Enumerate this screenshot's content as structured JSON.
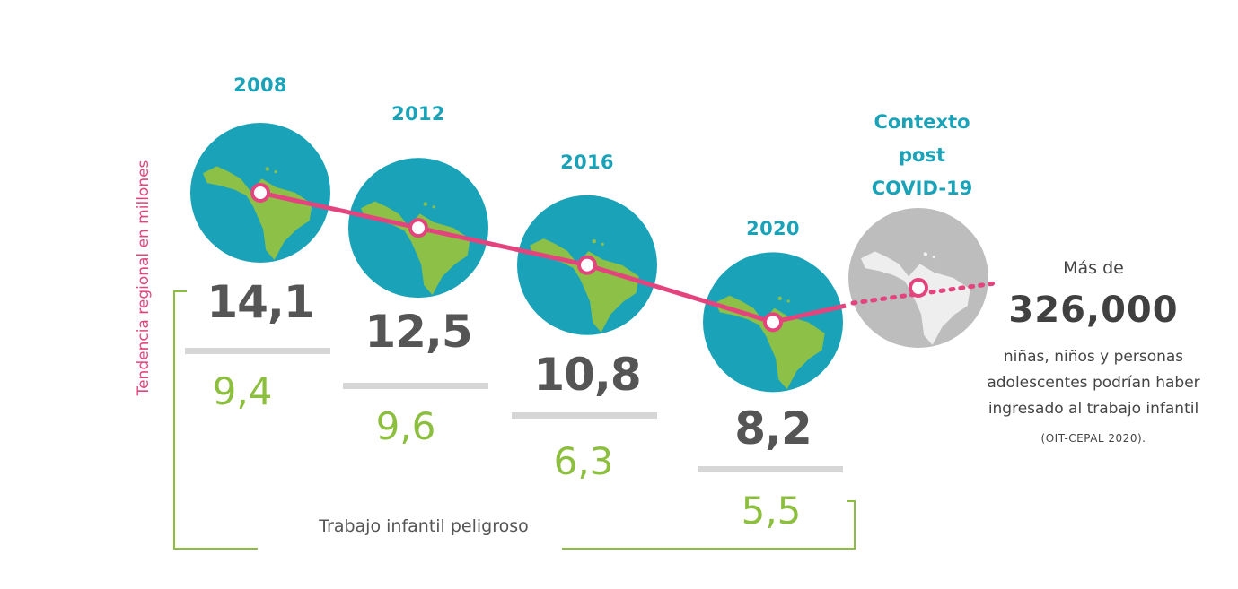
{
  "colors": {
    "ocean": "#1aa3b8",
    "land": "#8dc046",
    "trend_line": "#e4447e",
    "total_text": "#555555",
    "hazard_text": "#8dbf3e",
    "projection_globe": "#bdbdbd",
    "projection_land": "#eeeeee"
  },
  "chart_data": {
    "type": "line",
    "title": "",
    "ylabel": "Tendencia regional en millones",
    "categories": [
      "2008",
      "2012",
      "2016",
      "2020"
    ],
    "series": [
      {
        "name": "",
        "values": [
          14.1,
          12.5,
          10.8,
          8.2
        ],
        "labels": [
          "14,1",
          "12,5",
          "10,8",
          "8,2"
        ]
      },
      {
        "name": "Trabajo infantil peligroso",
        "values": [
          9.4,
          9.6,
          6.3,
          5.5
        ],
        "labels": [
          "9,4",
          "9,6",
          "6,3",
          "5,5"
        ]
      }
    ],
    "projection": {
      "title_lines": [
        "Contexto",
        "post",
        "COVID-19"
      ],
      "style": "dotted"
    }
  },
  "side_note": {
    "prefix": "Más de",
    "value": "326,000",
    "description_lines": [
      "niñas, niños y personas",
      "adolescentes podrían haber",
      "ingresado al trabajo infantil"
    ],
    "source": "(OIT-CEPAL 2020)."
  }
}
